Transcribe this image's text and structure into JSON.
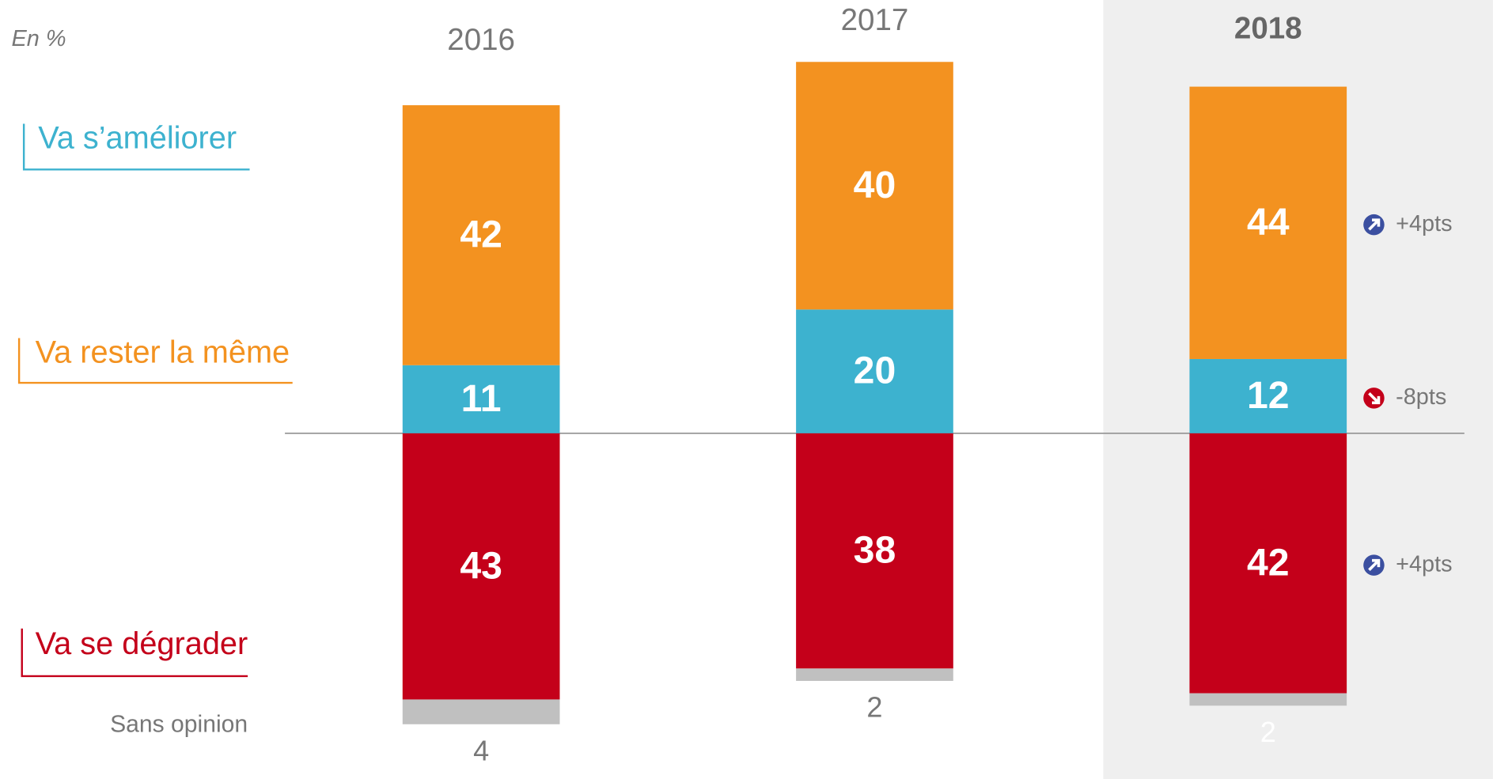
{
  "chart_data": {
    "type": "diverging_stacked_bar",
    "unit_label": "En %",
    "categories": [
      "2016",
      "2017",
      "2018"
    ],
    "highlight_category": 2,
    "ylim": [
      -50,
      60
    ],
    "series": [
      {
        "name": "Va s’améliorer",
        "color": "#3db2cf",
        "side": "above",
        "values": [
          11,
          20,
          12
        ]
      },
      {
        "name": "Va rester la même",
        "color": "#f39220",
        "side": "above",
        "values": [
          42,
          40,
          44
        ]
      },
      {
        "name": "Va se dégrader",
        "color": "#c4001a",
        "side": "below",
        "values": [
          43,
          38,
          42
        ]
      },
      {
        "name": "Sans opinion",
        "color": "#c0c0c0",
        "side": "below",
        "values": [
          4,
          2,
          2
        ]
      }
    ],
    "annotations": [
      {
        "text": "-8pts",
        "color": "#c4001a"
      },
      {
        "text": "+4pts",
        "color": "#3b4fa0"
      },
      {
        "text": "+4pts",
        "color": "#3b4fa0"
      }
    ]
  }
}
